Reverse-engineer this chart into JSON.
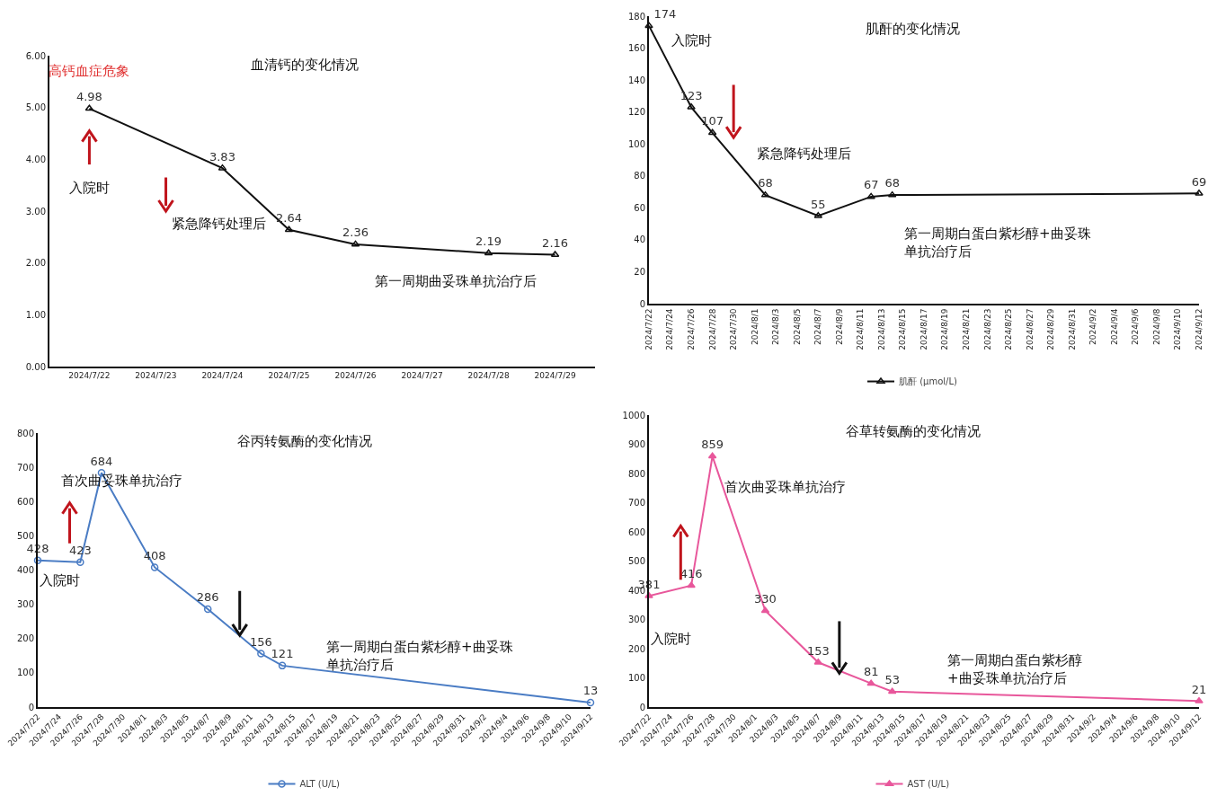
{
  "chart_data": [
    {
      "type": "line",
      "title": "血清钙的变化情况",
      "categories": [
        "2024/7/22",
        "2024/7/23",
        "2024/7/24",
        "2024/7/25",
        "2024/7/26",
        "2024/7/27",
        "2024/7/28",
        "2024/7/29"
      ],
      "values": [
        4.98,
        null,
        3.83,
        2.64,
        2.36,
        null,
        2.19,
        2.16
      ],
      "color": "#111111",
      "ylim": [
        0,
        6
      ],
      "yticks": [
        {
          "value": 0,
          "label": "0.00"
        },
        {
          "value": 1,
          "label": "1.00"
        },
        {
          "value": 2,
          "label": "2.00"
        },
        {
          "value": 3,
          "label": "3.00"
        },
        {
          "value": 4,
          "label": "4.00"
        },
        {
          "value": 5,
          "label": "5.00"
        },
        {
          "value": 6,
          "label": "6.00"
        }
      ],
      "grid": false,
      "legend": false,
      "marker": "triangle",
      "line_style": "solid",
      "data_labels": true,
      "annotations": [
        "高钙血症危象",
        "入院时",
        "紧急降钙处理后",
        "第一周期曲妥珠单抗治疗后"
      ]
    },
    {
      "type": "line",
      "title": "肌酐的变化情况",
      "x": [
        "2024-07-22",
        "2024-07-26",
        "2024-07-28",
        "2024-08-02",
        "2024-08-07",
        "2024-08-12",
        "2024-08-14",
        "2024-09-12"
      ],
      "series": [
        {
          "name": "肌酐 (μmol/L)",
          "color": "#111111",
          "values": [
            174,
            123,
            107,
            68,
            55,
            67,
            68,
            69
          ]
        }
      ],
      "xlim": [
        "2024-07-22",
        "2024-09-12"
      ],
      "xticks": [
        {
          "value": "2024-07-22",
          "label": "2024/7/22"
        },
        {
          "value": "2024-07-24",
          "label": "2024/7/24"
        },
        {
          "value": "2024-07-26",
          "label": "2024/7/26"
        },
        {
          "value": "2024-07-28",
          "label": "2024/7/28"
        },
        {
          "value": "2024-07-30",
          "label": "2024/7/30"
        },
        {
          "value": "2024-08-01",
          "label": "2024/8/1"
        },
        {
          "value": "2024-08-03",
          "label": "2024/8/3"
        },
        {
          "value": "2024-08-05",
          "label": "2024/8/5"
        },
        {
          "value": "2024-08-07",
          "label": "2024/8/7"
        },
        {
          "value": "2024-08-09",
          "label": "2024/8/9"
        },
        {
          "value": "2024-08-11",
          "label": "2024/8/11"
        },
        {
          "value": "2024-08-13",
          "label": "2024/8/13"
        },
        {
          "value": "2024-08-15",
          "label": "2024/8/15"
        },
        {
          "value": "2024-08-17",
          "label": "2024/8/17"
        },
        {
          "value": "2024-08-19",
          "label": "2024/8/19"
        },
        {
          "value": "2024-08-21",
          "label": "2024/8/21"
        },
        {
          "value": "2024-08-23",
          "label": "2024/8/23"
        },
        {
          "value": "2024-08-25",
          "label": "2024/8/25"
        },
        {
          "value": "2024-08-27",
          "label": "2024/8/27"
        },
        {
          "value": "2024-08-29",
          "label": "2024/8/29"
        },
        {
          "value": "2024-08-31",
          "label": "2024/8/31"
        },
        {
          "value": "2024-09-02",
          "label": "2024/9/2"
        },
        {
          "value": "2024-09-04",
          "label": "2024/9/4"
        },
        {
          "value": "2024-09-06",
          "label": "2024/9/6"
        },
        {
          "value": "2024-09-08",
          "label": "2024/9/8"
        },
        {
          "value": "2024-09-10",
          "label": "2024/9/10"
        },
        {
          "value": "2024-09-12",
          "label": "2024/9/12"
        }
      ],
      "ylim": [
        0,
        180
      ],
      "yticks": [
        0,
        20,
        40,
        60,
        80,
        100,
        120,
        140,
        160,
        180
      ],
      "grid": false,
      "legend": "bottom",
      "marker": "triangle",
      "line_style": "solid",
      "data_labels": true,
      "annotations": [
        "入院时",
        "紧急降钙处理后",
        "第一周期白蛋白紫杉醇+曲妥珠单抗治疗后"
      ]
    },
    {
      "type": "line",
      "title": "谷丙转氨酶的变化情况",
      "x": [
        "2024-07-22",
        "2024-07-26",
        "2024-07-28",
        "2024-08-02",
        "2024-08-07",
        "2024-08-12",
        "2024-08-14",
        "2024-09-12"
      ],
      "series": [
        {
          "name": "ALT (U/L)",
          "color": "#4a7cc4",
          "values": [
            428,
            423,
            684,
            408,
            286,
            156,
            121,
            13
          ]
        }
      ],
      "xlim": [
        "2024-07-22",
        "2024-09-12"
      ],
      "xticks": [
        {
          "value": "2024-07-22",
          "label": "2024/7/22"
        },
        {
          "value": "2024-07-24",
          "label": "2024/7/24"
        },
        {
          "value": "2024-07-26",
          "label": "2024/7/26"
        },
        {
          "value": "2024-07-28",
          "label": "2024/7/28"
        },
        {
          "value": "2024-07-30",
          "label": "2024/7/30"
        },
        {
          "value": "2024-08-01",
          "label": "2024/8/1"
        },
        {
          "value": "2024-08-03",
          "label": "2024/8/3"
        },
        {
          "value": "2024-08-05",
          "label": "2024/8/5"
        },
        {
          "value": "2024-08-07",
          "label": "2024/8/7"
        },
        {
          "value": "2024-08-09",
          "label": "2024/8/9"
        },
        {
          "value": "2024-08-11",
          "label": "2024/8/11"
        },
        {
          "value": "2024-08-13",
          "label": "2024/8/13"
        },
        {
          "value": "2024-08-15",
          "label": "2024/8/15"
        },
        {
          "value": "2024-08-17",
          "label": "2024/8/17"
        },
        {
          "value": "2024-08-19",
          "label": "2024/8/19"
        },
        {
          "value": "2024-08-21",
          "label": "2024/8/21"
        },
        {
          "value": "2024-08-23",
          "label": "2024/8/23"
        },
        {
          "value": "2024-08-25",
          "label": "2024/8/25"
        },
        {
          "value": "2024-08-27",
          "label": "2024/8/27"
        },
        {
          "value": "2024-08-29",
          "label": "2024/8/29"
        },
        {
          "value": "2024-08-31",
          "label": "2024/8/31"
        },
        {
          "value": "2024-09-02",
          "label": "2024/9/2"
        },
        {
          "value": "2024-09-04",
          "label": "2024/9/4"
        },
        {
          "value": "2024-09-06",
          "label": "2024/9/6"
        },
        {
          "value": "2024-09-08",
          "label": "2024/9/8"
        },
        {
          "value": "2024-09-10",
          "label": "2024/9/10"
        },
        {
          "value": "2024-09-12",
          "label": "2024/9/12"
        }
      ],
      "ylim": [
        0,
        800
      ],
      "yticks": [
        0,
        100,
        200,
        300,
        400,
        500,
        600,
        700,
        800
      ],
      "grid": false,
      "legend": "bottom",
      "marker": "circle",
      "line_style": "solid",
      "data_labels": true,
      "annotations": [
        "首次曲妥珠单抗治疗",
        "入院时",
        "第一周期白蛋白紫杉醇+曲妥珠单抗治疗后"
      ]
    },
    {
      "type": "line",
      "title": "谷草转氨酶的变化情况",
      "x": [
        "2024-07-22",
        "2024-07-26",
        "2024-07-28",
        "2024-08-02",
        "2024-08-07",
        "2024-08-12",
        "2024-08-14",
        "2024-09-12"
      ],
      "series": [
        {
          "name": "AST (U/L)",
          "color": "#e8579b",
          "values": [
            381,
            416,
            859,
            330,
            153,
            81,
            53,
            21
          ]
        }
      ],
      "xlim": [
        "2024-07-22",
        "2024-09-12"
      ],
      "xticks": [
        {
          "value": "2024-07-22",
          "label": "2024/7/22"
        },
        {
          "value": "2024-07-24",
          "label": "2024/7/24"
        },
        {
          "value": "2024-07-26",
          "label": "2024/7/26"
        },
        {
          "value": "2024-07-28",
          "label": "2024/7/28"
        },
        {
          "value": "2024-07-30",
          "label": "2024/7/30"
        },
        {
          "value": "2024-08-01",
          "label": "2024/8/1"
        },
        {
          "value": "2024-08-03",
          "label": "2024/8/3"
        },
        {
          "value": "2024-08-05",
          "label": "2024/8/5"
        },
        {
          "value": "2024-08-07",
          "label": "2024/8/7"
        },
        {
          "value": "2024-08-09",
          "label": "2024/8/9"
        },
        {
          "value": "2024-08-11",
          "label": "2024/8/11"
        },
        {
          "value": "2024-08-13",
          "label": "2024/8/13"
        },
        {
          "value": "2024-08-15",
          "label": "2024/8/15"
        },
        {
          "value": "2024-08-17",
          "label": "2024/8/17"
        },
        {
          "value": "2024-08-19",
          "label": "2024/8/19"
        },
        {
          "value": "2024-08-21",
          "label": "2024/8/21"
        },
        {
          "value": "2024-08-23",
          "label": "2024/8/23"
        },
        {
          "value": "2024-08-25",
          "label": "2024/8/25"
        },
        {
          "value": "2024-08-27",
          "label": "2024/8/27"
        },
        {
          "value": "2024-08-29",
          "label": "2024/8/29"
        },
        {
          "value": "2024-08-31",
          "label": "2024/8/31"
        },
        {
          "value": "2024-09-02",
          "label": "2024/9/2"
        },
        {
          "value": "2024-09-04",
          "label": "2024/9/4"
        },
        {
          "value": "2024-09-06",
          "label": "2024/9/6"
        },
        {
          "value": "2024-09-08",
          "label": "2024/9/8"
        },
        {
          "value": "2024-09-10",
          "label": "2024/9/10"
        },
        {
          "value": "2024-09-12",
          "label": "2024/9/12"
        }
      ],
      "ylim": [
        0,
        1000
      ],
      "yticks": [
        0,
        100,
        200,
        300,
        400,
        500,
        600,
        700,
        800,
        900,
        1000
      ],
      "grid": false,
      "legend": "bottom",
      "marker": "triangle",
      "line_style": "solid",
      "data_labels": true,
      "annotations": [
        "首次曲妥珠单抗治疗",
        "入院时",
        "第一周期白蛋白紫杉醇+曲妥珠单抗治疗后"
      ]
    }
  ]
}
